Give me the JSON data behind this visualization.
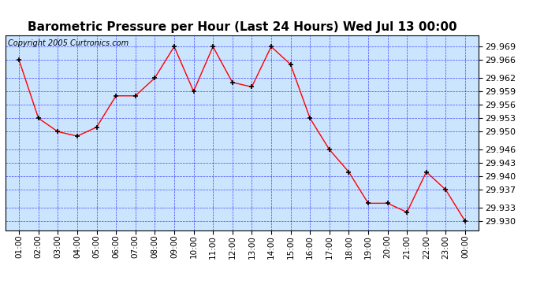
{
  "title": "Barometric Pressure per Hour (Last 24 Hours) Wed Jul 13 00:00",
  "copyright": "Copyright 2005 Curtronics.com",
  "x_labels": [
    "01:00",
    "02:00",
    "03:00",
    "04:00",
    "05:00",
    "06:00",
    "07:00",
    "08:00",
    "09:00",
    "10:00",
    "11:00",
    "12:00",
    "13:00",
    "14:00",
    "15:00",
    "16:00",
    "17:00",
    "18:00",
    "19:00",
    "20:00",
    "21:00",
    "22:00",
    "23:00",
    "00:00"
  ],
  "x_values": [
    1,
    2,
    3,
    4,
    5,
    6,
    7,
    8,
    9,
    10,
    11,
    12,
    13,
    14,
    15,
    16,
    17,
    18,
    19,
    20,
    21,
    22,
    23,
    24
  ],
  "y_values": [
    29.966,
    29.953,
    29.95,
    29.949,
    29.951,
    29.958,
    29.958,
    29.962,
    29.969,
    29.959,
    29.969,
    29.961,
    29.96,
    29.969,
    29.965,
    29.953,
    29.946,
    29.941,
    29.934,
    29.934,
    29.932,
    29.941,
    29.937,
    29.93
  ],
  "ylim_min": 29.928,
  "ylim_max": 29.9715,
  "yticks": [
    29.93,
    29.933,
    29.937,
    29.94,
    29.943,
    29.946,
    29.95,
    29.953,
    29.956,
    29.959,
    29.962,
    29.966,
    29.969
  ],
  "line_color": "red",
  "marker_color": "black",
  "fig_bg_color": "#ffffff",
  "plot_bg_color": "#cce5ff",
  "grid_color": "blue",
  "title_fontsize": 11,
  "copyright_fontsize": 7,
  "tick_fontsize": 7.5,
  "ytick_fontsize": 8
}
